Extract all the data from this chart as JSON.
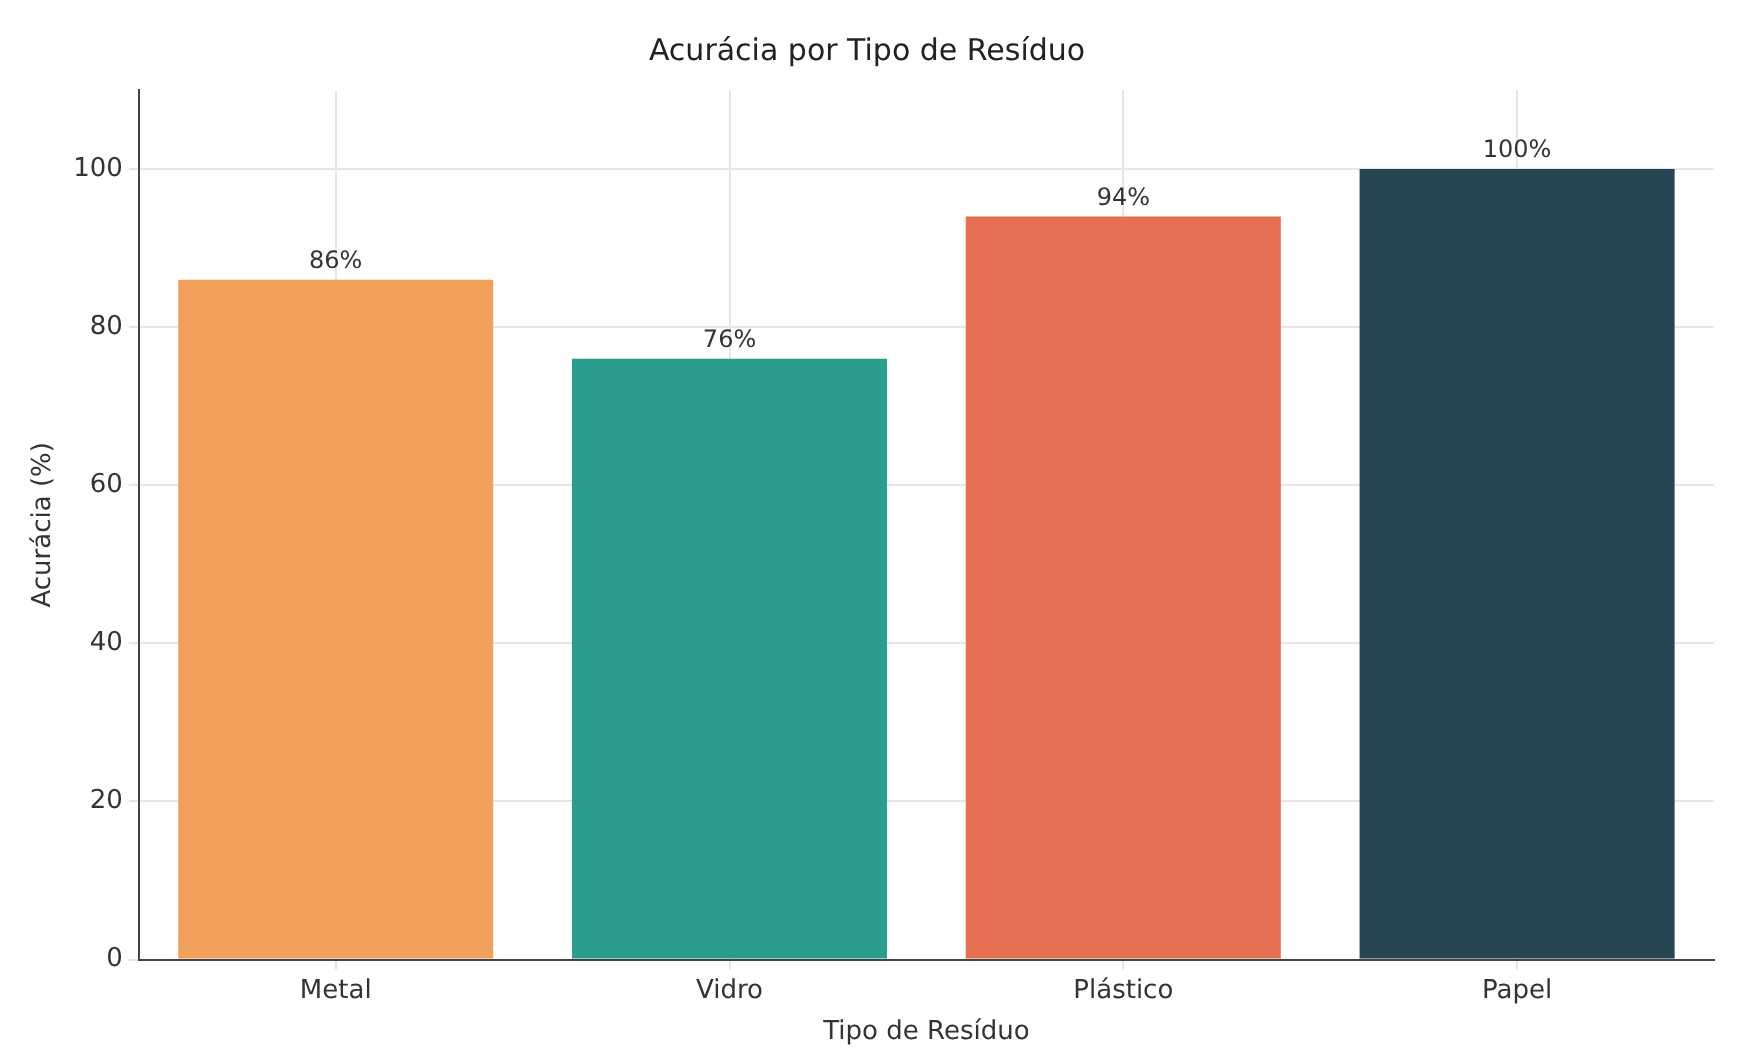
{
  "chart_data": {
    "type": "bar",
    "title": "Acurácia por Tipo de Resíduo",
    "xlabel": "Tipo de Resíduo",
    "ylabel": "Acurácia (%)",
    "categories": [
      "Metal",
      "Vidro",
      "Plástico",
      "Papel"
    ],
    "values": [
      86,
      76,
      94,
      100
    ],
    "colors": [
      "#f0a05a",
      "#2a9d8f",
      "#e76f51",
      "#264653"
    ],
    "value_labels": [
      "86%",
      "76%",
      "94%",
      "100%"
    ],
    "ylim": [
      0,
      110
    ],
    "yticks": [
      0,
      20,
      40,
      60,
      80,
      100
    ],
    "grid": true,
    "legend": false
  }
}
